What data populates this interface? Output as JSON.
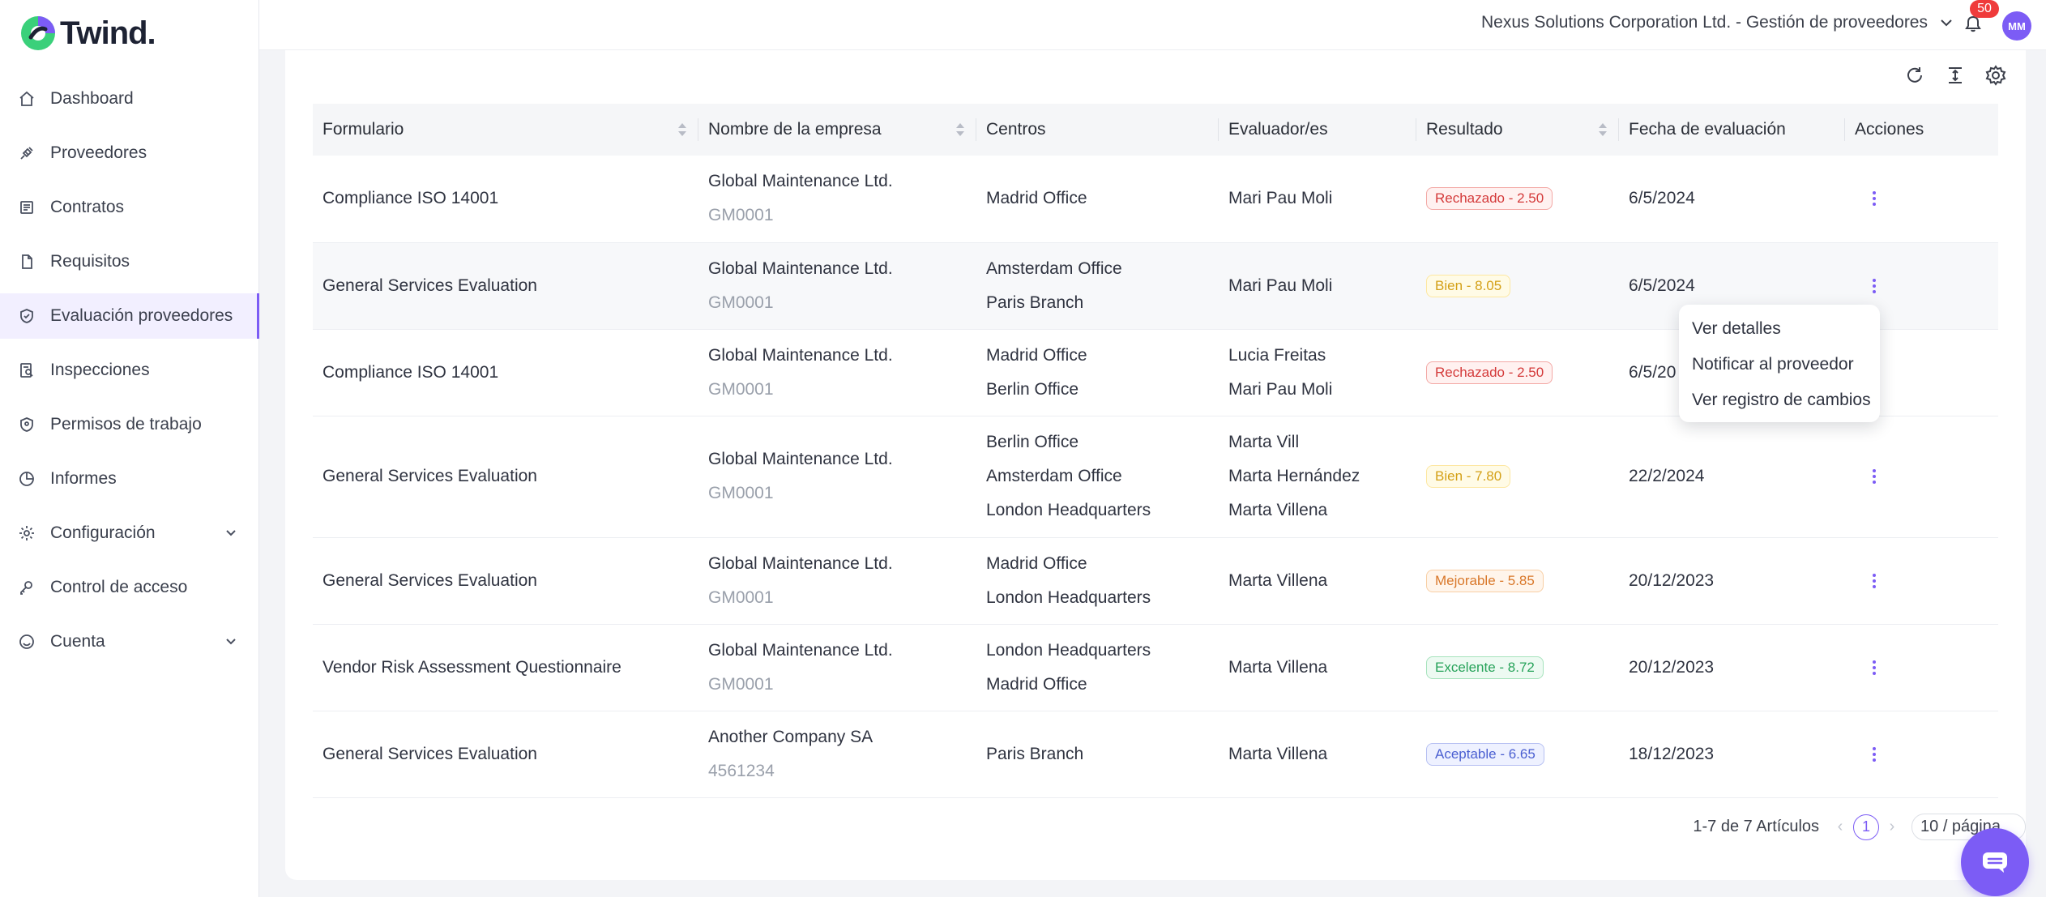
{
  "app": {
    "name": "Twind."
  },
  "sidebar": {
    "items": [
      {
        "label": "Dashboard",
        "icon": "home-icon"
      },
      {
        "label": "Proveedores",
        "icon": "plug-icon"
      },
      {
        "label": "Contratos",
        "icon": "contract-icon"
      },
      {
        "label": "Requisitos",
        "icon": "document-icon"
      },
      {
        "label": "Evaluación proveedores",
        "icon": "shield-check-icon",
        "active": true
      },
      {
        "label": "Inspecciones",
        "icon": "inspection-icon"
      },
      {
        "label": "Permisos de trabajo",
        "icon": "shield-icon"
      },
      {
        "label": "Informes",
        "icon": "chart-icon"
      },
      {
        "label": "Configuración",
        "icon": "gear-icon",
        "expandable": true
      },
      {
        "label": "Control de acceso",
        "icon": "key-icon"
      },
      {
        "label": "Cuenta",
        "icon": "smile-icon",
        "expandable": true
      }
    ]
  },
  "topbar": {
    "organization": "Nexus Solutions Corporation Ltd. - Gestión de proveedores",
    "notifications": "50",
    "avatar": "MM"
  },
  "table": {
    "headers": [
      "Formulario",
      "Nombre de la empresa",
      "Centros",
      "Evaluador/es",
      "Resultado",
      "Fecha de evaluación",
      "Acciones"
    ],
    "rows": [
      {
        "form": "Compliance ISO 14001",
        "company": "Global Maintenance Ltd.",
        "code": "GM0001",
        "centers": [
          "Madrid Office"
        ],
        "evaluators": [
          "Mari Pau Moli"
        ],
        "result": "Rechazado - 2.50",
        "status": "red",
        "date": "6/5/2024"
      },
      {
        "form": "General Services Evaluation",
        "company": "Global Maintenance Ltd.",
        "code": "GM0001",
        "centers": [
          "Amsterdam Office",
          "Paris Branch"
        ],
        "evaluators": [
          "Mari Pau Moli"
        ],
        "result": "Bien - 8.05",
        "status": "yellow",
        "date": "6/5/2024"
      },
      {
        "form": "Compliance ISO 14001",
        "company": "Global Maintenance Ltd.",
        "code": "GM0001",
        "centers": [
          "Madrid Office",
          "Berlin Office"
        ],
        "evaluators": [
          "Lucia Freitas",
          "Mari Pau Moli"
        ],
        "result": "Rechazado - 2.50",
        "status": "red",
        "date": "6/5/20"
      },
      {
        "form": "General Services Evaluation",
        "company": "Global Maintenance Ltd.",
        "code": "GM0001",
        "centers": [
          "Berlin Office",
          "Amsterdam Office",
          "London Headquarters"
        ],
        "evaluators": [
          "Marta Vill",
          "Marta Hernández",
          "Marta Villena"
        ],
        "result": "Bien - 7.80",
        "status": "yellow",
        "date": "22/2/2024"
      },
      {
        "form": "General Services Evaluation",
        "company": "Global Maintenance Ltd.",
        "code": "GM0001",
        "centers": [
          "Madrid Office",
          "London Headquarters"
        ],
        "evaluators": [
          "Marta Villena"
        ],
        "result": "Mejorable - 5.85",
        "status": "orange",
        "date": "20/12/2023"
      },
      {
        "form": "Vendor Risk Assessment Questionnaire",
        "company": "Global Maintenance Ltd.",
        "code": "GM0001",
        "centers": [
          "London Headquarters",
          "Madrid Office"
        ],
        "evaluators": [
          "Marta Villena"
        ],
        "result": "Excelente - 8.72",
        "status": "green",
        "date": "20/12/2023"
      },
      {
        "form": "General Services Evaluation",
        "company": "Another Company SA",
        "code": "4561234",
        "centers": [
          "Paris Branch"
        ],
        "evaluators": [
          "Marta Villena"
        ],
        "result": "Aceptable - 6.65",
        "status": "blue",
        "date": "18/12/2023"
      }
    ]
  },
  "menu": {
    "items": [
      "Ver detalles",
      "Notificar al proveedor",
      "Ver registro de cambios"
    ]
  },
  "pagination": {
    "total": "1-7 de 7 Artículos",
    "current": "1",
    "page_size": "10 / página"
  },
  "colors": {
    "accent": "#7c5cf5"
  }
}
